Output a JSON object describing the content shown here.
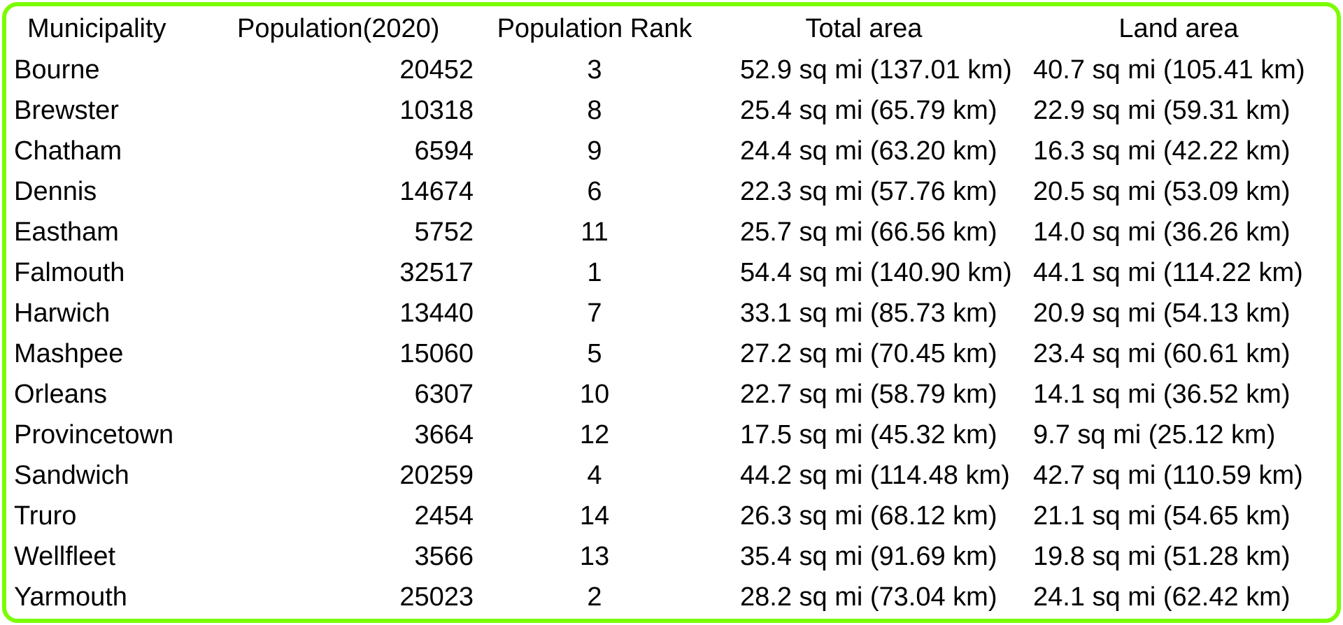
{
  "chart_data": {
    "type": "table",
    "columns": [
      "Municipality",
      "Population(2020)",
      "Population Rank",
      "Total area",
      "Land area"
    ],
    "rows": [
      [
        "Bourne",
        "20452",
        "3",
        "52.9 sq mi (137.01 km)",
        "40.7 sq mi (105.41 km)"
      ],
      [
        "Brewster",
        "10318",
        "8",
        "25.4 sq mi (65.79 km)",
        "22.9 sq mi (59.31 km)"
      ],
      [
        "Chatham",
        "6594",
        "9",
        "24.4 sq mi (63.20 km)",
        "16.3 sq mi (42.22 km)"
      ],
      [
        "Dennis",
        "14674",
        "6",
        "22.3 sq mi (57.76 km)",
        "20.5 sq mi (53.09 km)"
      ],
      [
        "Eastham",
        "5752",
        "11",
        "25.7 sq mi (66.56 km)",
        "14.0 sq mi (36.26 km)"
      ],
      [
        "Falmouth",
        "32517",
        "1",
        "54.4 sq mi (140.90 km)",
        "44.1 sq mi (114.22 km)"
      ],
      [
        "Harwich",
        "13440",
        "7",
        "33.1 sq mi (85.73 km)",
        "20.9 sq mi (54.13 km)"
      ],
      [
        "Mashpee",
        "15060",
        "5",
        "27.2 sq mi (70.45 km)",
        "23.4 sq mi (60.61 km)"
      ],
      [
        "Orleans",
        "6307",
        "10",
        "22.7 sq mi (58.79 km)",
        "14.1 sq mi (36.52 km)"
      ],
      [
        "Provincetown",
        "3664",
        "12",
        "17.5 sq mi (45.32 km)",
        "9.7 sq mi (25.12 km)"
      ],
      [
        "Sandwich",
        "20259",
        "4",
        "44.2 sq mi (114.48 km)",
        "42.7 sq mi (110.59 km)"
      ],
      [
        "Truro",
        "2454",
        "14",
        "26.3 sq mi (68.12 km)",
        "21.1 sq mi (54.65 km)"
      ],
      [
        "Wellfleet",
        "3566",
        "13",
        "35.4 sq mi (91.69 km)",
        "19.8 sq mi (51.28 km)"
      ],
      [
        "Yarmouth",
        "25023",
        "2",
        "28.2 sq mi (73.04 km)",
        "24.1 sq mi (62.42 km)"
      ]
    ]
  },
  "colors": {
    "border": "#7cfc00",
    "background": "#ffffff",
    "text": "#000000"
  }
}
